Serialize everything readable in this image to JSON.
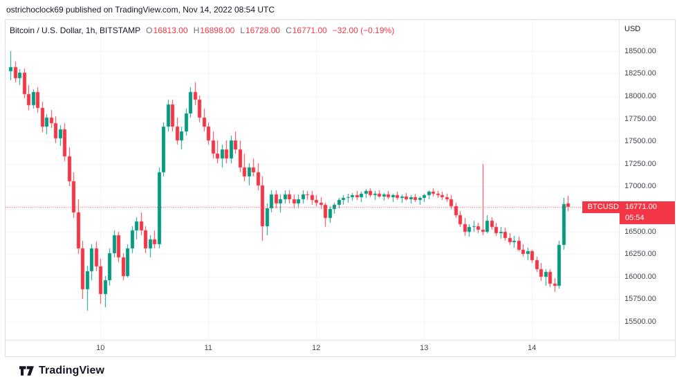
{
  "top_bar": {
    "attribution": "ostrichoclock69 published on TradingView.com, Nov 14, 2022 08:54 UTC"
  },
  "legend": {
    "title": "Bitcoin / U.S. Dollar, 1h, BITSTAMP",
    "o_label": "O",
    "open": "16813.00",
    "h_label": "H",
    "high": "16898.00",
    "l_label": "L",
    "low": "16728.00",
    "c_label": "C",
    "close": "16771.00",
    "change": "−32.00 (−0.19%)"
  },
  "price_axis": {
    "currency": "USD"
  },
  "last_label": {
    "symbol": "BTCUSD",
    "price": "16771.00",
    "countdown": "05:54"
  },
  "footer": {
    "brand": "TradingView"
  },
  "colors": {
    "up": "#089981",
    "down": "#f23645",
    "grid": "#f0f3fa",
    "axis_line": "#e0e3eb",
    "axis_text": "#434651",
    "text": "#131722"
  },
  "chart_data": {
    "type": "candlestick",
    "title": "Bitcoin / U.S. Dollar, 1h, BITSTAMP",
    "symbol": "BTCUSD",
    "exchange": "BITSTAMP",
    "interval": "1h",
    "current_ohlc": {
      "open": 16813.0,
      "high": 16898.0,
      "low": 16728.0,
      "close": 16771.0,
      "change": -32.0,
      "change_pct": -0.19
    },
    "last_price": 16771.0,
    "countdown": "05:54",
    "y_domain": [
      15293,
      18844
    ],
    "price_ticks": [
      18500,
      18250,
      18000,
      17750,
      17500,
      17250,
      17000,
      16750,
      16500,
      16250,
      16000,
      15750,
      15500
    ],
    "day_ticks": [
      {
        "index": 20,
        "label": "10"
      },
      {
        "index": 44,
        "label": "11"
      },
      {
        "index": 68,
        "label": "12"
      },
      {
        "index": 92,
        "label": "13"
      },
      {
        "index": 116,
        "label": "14"
      }
    ],
    "candles": [
      [
        18280,
        18500,
        18180,
        18320
      ],
      [
        18320,
        18380,
        18150,
        18200
      ],
      [
        18200,
        18300,
        18120,
        18260
      ],
      [
        18260,
        18310,
        17980,
        18020
      ],
      [
        18020,
        18120,
        17850,
        17900
      ],
      [
        17900,
        18080,
        17860,
        18050
      ],
      [
        18050,
        18100,
        17820,
        17870
      ],
      [
        17870,
        17940,
        17600,
        17660
      ],
      [
        17660,
        17800,
        17580,
        17760
      ],
      [
        17760,
        17850,
        17650,
        17700
      ],
      [
        17700,
        17780,
        17480,
        17530
      ],
      [
        17530,
        17680,
        17450,
        17630
      ],
      [
        17630,
        17700,
        17280,
        17330
      ],
      [
        17330,
        17430,
        17000,
        17060
      ],
      [
        17060,
        17160,
        16650,
        16710
      ],
      [
        16710,
        16860,
        16250,
        16310
      ],
      [
        16310,
        16400,
        15750,
        15860
      ],
      [
        15860,
        16120,
        15620,
        16060
      ],
      [
        16060,
        16360,
        15960,
        16310
      ],
      [
        16310,
        16390,
        16060,
        16110
      ],
      [
        16110,
        16200,
        15700,
        15810
      ],
      [
        15810,
        16010,
        15660,
        15960
      ],
      [
        15960,
        16310,
        15900,
        16260
      ],
      [
        16260,
        16510,
        16210,
        16460
      ],
      [
        16460,
        16500,
        16160,
        16210
      ],
      [
        16210,
        16260,
        15960,
        16010
      ],
      [
        16010,
        16360,
        15990,
        16310
      ],
      [
        16310,
        16560,
        16260,
        16510
      ],
      [
        16510,
        16660,
        16410,
        16610
      ],
      [
        16610,
        16710,
        16460,
        16510
      ],
      [
        16510,
        16560,
        16260,
        16310
      ],
      [
        16310,
        16460,
        16210,
        16410
      ],
      [
        16410,
        16510,
        16310,
        16360
      ],
      [
        16360,
        17210,
        16310,
        17160
      ],
      [
        17160,
        17710,
        17110,
        17660
      ],
      [
        17660,
        17960,
        17610,
        17910
      ],
      [
        17910,
        17960,
        17610,
        17660
      ],
      [
        17660,
        17760,
        17460,
        17510
      ],
      [
        17510,
        17660,
        17410,
        17610
      ],
      [
        17610,
        17860,
        17560,
        17810
      ],
      [
        17810,
        18100,
        17760,
        18050
      ],
      [
        18050,
        18150,
        17900,
        17960
      ],
      [
        17960,
        18010,
        17710,
        17760
      ],
      [
        17760,
        17860,
        17610,
        17660
      ],
      [
        17660,
        17710,
        17460,
        17510
      ],
      [
        17510,
        17610,
        17310,
        17360
      ],
      [
        17360,
        17510,
        17260,
        17310
      ],
      [
        17310,
        17460,
        17210,
        17410
      ],
      [
        17410,
        17510,
        17260,
        17310
      ],
      [
        17310,
        17560,
        17260,
        17510
      ],
      [
        17510,
        17610,
        17360,
        17410
      ],
      [
        17410,
        17510,
        17160,
        17210
      ],
      [
        17210,
        17360,
        17060,
        17110
      ],
      [
        17110,
        17260,
        17010,
        17210
      ],
      [
        17210,
        17310,
        17110,
        17160
      ],
      [
        17160,
        17260,
        16960,
        17010
      ],
      [
        17010,
        17110,
        16400,
        16560
      ],
      [
        16560,
        16810,
        16460,
        16760
      ],
      [
        16760,
        16960,
        16710,
        16910
      ],
      [
        16910,
        16960,
        16760,
        16810
      ],
      [
        16810,
        16910,
        16710,
        16860
      ],
      [
        16860,
        16960,
        16810,
        16910
      ],
      [
        16910,
        16960,
        16810,
        16860
      ],
      [
        16860,
        16910,
        16760,
        16810
      ],
      [
        16810,
        16910,
        16760,
        16860
      ],
      [
        16860,
        16960,
        16810,
        16910
      ],
      [
        16910,
        16950,
        16850,
        16900
      ],
      [
        16900,
        16950,
        16800,
        16850
      ],
      [
        16850,
        16900,
        16780,
        16820
      ],
      [
        16820,
        16880,
        16750,
        16800
      ],
      [
        16800,
        16820,
        16550,
        16650
      ],
      [
        16650,
        16780,
        16600,
        16750
      ],
      [
        16750,
        16820,
        16700,
        16800
      ],
      [
        16800,
        16870,
        16760,
        16850
      ],
      [
        16850,
        16900,
        16800,
        16870
      ],
      [
        16870,
        16920,
        16820,
        16880
      ],
      [
        16880,
        16930,
        16840,
        16900
      ],
      [
        16900,
        16950,
        16850,
        16880
      ],
      [
        16880,
        16940,
        16830,
        16920
      ],
      [
        16920,
        16970,
        16870,
        16950
      ],
      [
        16950,
        16980,
        16880,
        16900
      ],
      [
        16900,
        16950,
        16850,
        16920
      ],
      [
        16920,
        16960,
        16870,
        16890
      ],
      [
        16890,
        16930,
        16840,
        16910
      ],
      [
        16910,
        16950,
        16860,
        16880
      ],
      [
        16880,
        16920,
        16830,
        16900
      ],
      [
        16900,
        16940,
        16850,
        16870
      ],
      [
        16870,
        16910,
        16820,
        16890
      ],
      [
        16890,
        16930,
        16840,
        16860
      ],
      [
        16860,
        16900,
        16810,
        16880
      ],
      [
        16880,
        16920,
        16830,
        16850
      ],
      [
        16850,
        16890,
        16800,
        16870
      ],
      [
        16870,
        16920,
        16830,
        16900
      ],
      [
        16900,
        16960,
        16860,
        16940
      ],
      [
        16940,
        16980,
        16890,
        16920
      ],
      [
        16920,
        16950,
        16870,
        16900
      ],
      [
        16900,
        16940,
        16850,
        16880
      ],
      [
        16880,
        16920,
        16830,
        16860
      ],
      [
        16860,
        16900,
        16750,
        16780
      ],
      [
        16780,
        16820,
        16650,
        16680
      ],
      [
        16680,
        16730,
        16550,
        16580
      ],
      [
        16580,
        16650,
        16450,
        16500
      ],
      [
        16500,
        16580,
        16440,
        16550
      ],
      [
        16550,
        16620,
        16500,
        16560
      ],
      [
        16560,
        16600,
        16480,
        16520
      ],
      [
        16520,
        17250,
        16460,
        16500
      ],
      [
        16500,
        16680,
        16480,
        16620
      ],
      [
        16620,
        16660,
        16520,
        16550
      ],
      [
        16550,
        16600,
        16450,
        16480
      ],
      [
        16480,
        16550,
        16420,
        16500
      ],
      [
        16500,
        16540,
        16400,
        16430
      ],
      [
        16430,
        16480,
        16350,
        16380
      ],
      [
        16380,
        16450,
        16320,
        16400
      ],
      [
        16400,
        16440,
        16280,
        16300
      ],
      [
        16300,
        16360,
        16220,
        16250
      ],
      [
        16250,
        16320,
        16180,
        16280
      ],
      [
        16280,
        16300,
        16150,
        16180
      ],
      [
        16180,
        16220,
        16050,
        16080
      ],
      [
        16080,
        16150,
        15950,
        16000
      ],
      [
        16000,
        16080,
        15900,
        16050
      ],
      [
        16050,
        16080,
        15880,
        15920
      ],
      [
        15920,
        15980,
        15830,
        15900
      ],
      [
        15900,
        16400,
        15870,
        16350
      ],
      [
        16350,
        16870,
        16300,
        16803
      ],
      [
        16813,
        16898,
        16728,
        16771
      ]
    ]
  }
}
